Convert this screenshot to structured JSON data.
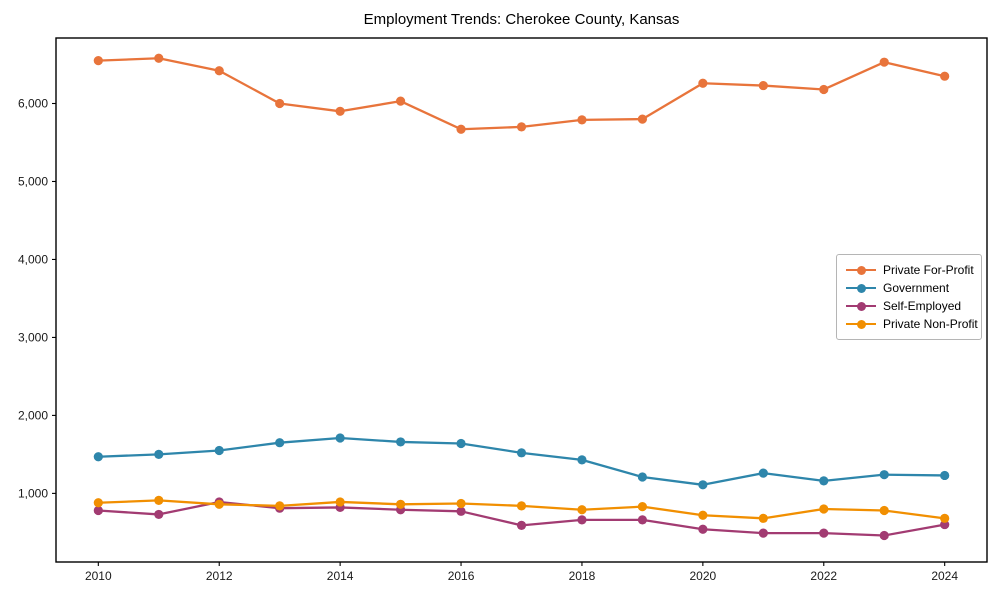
{
  "title": "Employment Trends: Cherokee County, Kansas",
  "chart_data": {
    "type": "line",
    "title": "Employment Trends: Cherokee County, Kansas",
    "xlabel": "",
    "ylabel": "",
    "x": [
      2010,
      2011,
      2012,
      2013,
      2014,
      2015,
      2016,
      2017,
      2018,
      2019,
      2020,
      2021,
      2022,
      2023,
      2024
    ],
    "series": [
      {
        "name": "Private For-Profit",
        "color": "#E8743B",
        "values": [
          6550,
          6580,
          6420,
          6000,
          5900,
          6030,
          5670,
          5700,
          5790,
          5800,
          6260,
          6230,
          6180,
          6530,
          6350
        ]
      },
      {
        "name": "Government",
        "color": "#2E86AB",
        "values": [
          1470,
          1500,
          1550,
          1650,
          1710,
          1660,
          1640,
          1520,
          1430,
          1210,
          1110,
          1260,
          1160,
          1240,
          1230
        ]
      },
      {
        "name": "Self-Employed",
        "color": "#A23B72",
        "values": [
          780,
          730,
          890,
          810,
          820,
          790,
          770,
          590,
          660,
          660,
          540,
          490,
          490,
          460,
          600
        ]
      },
      {
        "name": "Private Non-Profit",
        "color": "#F18F01",
        "values": [
          880,
          910,
          860,
          840,
          890,
          860,
          870,
          840,
          790,
          830,
          720,
          680,
          800,
          780,
          680
        ]
      }
    ],
    "xlim": [
      2009.3,
      2024.7
    ],
    "ylim": [
      120,
      6840
    ],
    "x_ticks": [
      2010,
      2012,
      2014,
      2016,
      2018,
      2020,
      2022,
      2024
    ],
    "x_tick_labels": [
      "2010",
      "2012",
      "2014",
      "2016",
      "2018",
      "2020",
      "2022",
      "2024"
    ],
    "y_ticks": [
      1000,
      2000,
      3000,
      4000,
      5000,
      6000
    ],
    "y_tick_labels": [
      "1,000",
      "2,000",
      "3,000",
      "4,000",
      "5,000",
      "6,000"
    ],
    "grid": false,
    "legend_position": "center right",
    "marker": "circle",
    "axis_color": "#000000",
    "tick_label_color": "#1a1a1a"
  }
}
